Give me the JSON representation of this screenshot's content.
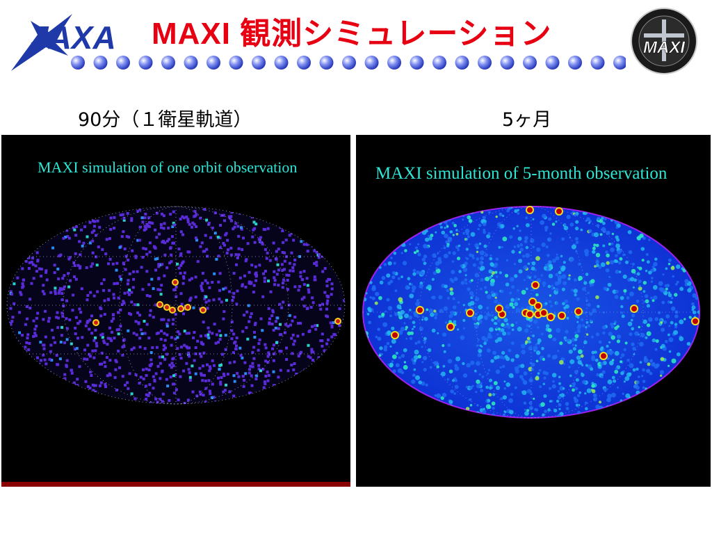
{
  "header": {
    "title": "MAXI 観測シミュレーション",
    "logo_text": "JAXA",
    "badge_text": "MAXI",
    "accent_color": "#e60012",
    "logo_color": "#1f3aa8"
  },
  "panels": [
    {
      "caption": "90分（１衛星軌道）",
      "title": "MAXI simulation of  one orbit observation"
    },
    {
      "caption": "5ヶ月",
      "title": "MAXI simulation of  5-month observation"
    }
  ]
}
